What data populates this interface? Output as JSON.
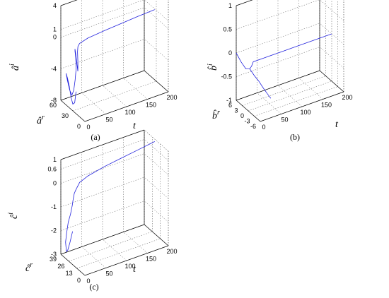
{
  "chart_data": [
    {
      "type": "line",
      "caption": "(a)",
      "zlabel": "â^i",
      "ylabel": "â^r",
      "xlabel": "t",
      "z_ticks": [
        "4",
        "1",
        "0",
        "-4",
        "-8"
      ],
      "y_ticks": [
        "60",
        "30",
        "0"
      ],
      "x_ticks": [
        "0",
        "50",
        "100",
        "150",
        "200"
      ],
      "zlim": [
        -8,
        4
      ],
      "ylim": [
        0,
        60
      ],
      "xlim": [
        0,
        200
      ],
      "grid": true,
      "series": [
        {
          "color": "#2222dd",
          "points": [
            [
              0,
              22,
              -5.2
            ],
            [
              0.5,
              26,
              -6.8
            ],
            [
              1,
              31,
              -7.2
            ],
            [
              1.5,
              36,
              -6.6
            ],
            [
              2,
              41,
              -5.4
            ],
            [
              2.5,
              46,
              -4.6
            ],
            [
              3,
              50,
              -4.2
            ],
            [
              3.5,
              47,
              -5
            ],
            [
              4,
              42,
              -6
            ],
            [
              4.5,
              37,
              -6.4
            ],
            [
              5,
              33,
              -5.6
            ],
            [
              5.5,
              30,
              -4.2
            ],
            [
              6,
              28,
              -2.6
            ],
            [
              7,
              30,
              -1.4
            ],
            [
              8,
              33,
              -0.7
            ],
            [
              9,
              34,
              -0.5
            ],
            [
              10,
              33,
              -1.2
            ],
            [
              11,
              31,
              -2.4
            ],
            [
              12,
              30,
              -3.2
            ],
            [
              13,
              31,
              -2
            ],
            [
              14,
              33,
              -0.9
            ],
            [
              16,
              34,
              -0.3
            ],
            [
              20,
              34,
              0
            ],
            [
              40,
              34,
              0.3
            ],
            [
              80,
              34,
              0.5
            ],
            [
              120,
              34,
              0.65
            ],
            [
              160,
              34,
              0.8
            ],
            [
              200,
              34,
              0.9
            ]
          ]
        }
      ]
    },
    {
      "type": "line",
      "caption": "(b)",
      "zlabel": "b̂^i",
      "ylabel": "b̂^r",
      "xlabel": "t",
      "z_ticks": [
        "1",
        "0.5",
        "0",
        "-0.5",
        "-1"
      ],
      "y_ticks": [
        "6",
        "3",
        "0",
        "-3",
        "-6"
      ],
      "x_ticks": [
        "0",
        "50",
        "100",
        "150",
        "200"
      ],
      "zlim": [
        -1,
        1
      ],
      "ylim": [
        -6,
        6
      ],
      "xlim": [
        0,
        200
      ],
      "grid": true,
      "series": [
        {
          "color": "#2222dd",
          "points": [
            [
              0,
              6,
              0
            ],
            [
              2,
              4,
              -0.12
            ],
            [
              4,
              2,
              -0.2
            ],
            [
              6,
              0.5,
              -0.15
            ],
            [
              8,
              0,
              -0.08
            ],
            [
              12,
              0,
              0
            ],
            [
              40,
              0,
              0
            ],
            [
              80,
              0,
              0
            ],
            [
              120,
              0,
              0
            ],
            [
              160,
              0,
              0
            ],
            [
              200,
              0,
              0
            ]
          ]
        },
        {
          "color": "#2222dd",
          "points": [
            [
              6,
              0.5,
              -0.15
            ],
            [
              10,
              -1,
              -0.25
            ],
            [
              14,
              -2.4,
              -0.33
            ],
            [
              18,
              -3.6,
              -0.43
            ],
            [
              22,
              -4.8,
              -0.52
            ],
            [
              26,
              -5.8,
              -0.6
            ]
          ]
        }
      ]
    },
    {
      "type": "line",
      "caption": "(c)",
      "zlabel": "ĉ^i",
      "ylabel": "ĉ^r",
      "xlabel": "t",
      "z_ticks": [
        "1",
        "0.6",
        "0",
        "-1",
        "-2",
        "-3"
      ],
      "y_ticks": [
        "39",
        "26",
        "13",
        "0"
      ],
      "x_ticks": [
        "0",
        "50",
        "100",
        "150",
        "200"
      ],
      "zlim": [
        -3,
        1
      ],
      "ylim": [
        0,
        39
      ],
      "xlim": [
        0,
        200
      ],
      "grid": true,
      "series": [
        {
          "color": "#2222dd",
          "points": [
            [
              0,
              20,
              -1.6
            ],
            [
              1,
              25,
              -2.2
            ],
            [
              2,
              29,
              -2.6
            ],
            [
              3,
              32,
              -2.75
            ],
            [
              4,
              34,
              -2.4
            ],
            [
              5,
              33,
              -2
            ],
            [
              6,
              31,
              -1.5
            ],
            [
              7,
              28,
              -1.1
            ],
            [
              8,
              26,
              -0.7
            ],
            [
              9,
              25,
              -0.4
            ],
            [
              10,
              24,
              -0.15
            ],
            [
              12,
              23,
              0
            ],
            [
              20,
              22,
              0.3
            ],
            [
              40,
              22,
              0.45
            ],
            [
              80,
              22,
              0.6
            ],
            [
              120,
              22,
              0.7
            ],
            [
              160,
              22,
              0.8
            ],
            [
              200,
              22,
              0.9
            ]
          ]
        }
      ]
    }
  ]
}
